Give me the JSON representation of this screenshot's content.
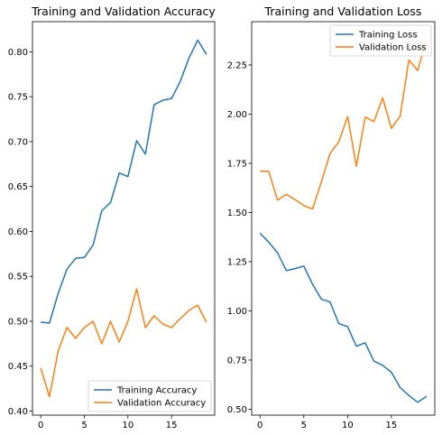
{
  "chart_data": [
    {
      "type": "line",
      "title": "Training and Validation Accuracy",
      "xlabel": "",
      "ylabel": "",
      "xlim": [
        -0.95,
        19.95
      ],
      "ylim": [
        0.3955,
        0.8335
      ],
      "xticks": [
        0,
        5,
        10,
        15
      ],
      "yticks": [
        0.4,
        0.45,
        0.5,
        0.55,
        0.6,
        0.65,
        0.7,
        0.75,
        0.8
      ],
      "ytick_labels": [
        "0.40",
        "0.45",
        "0.50",
        "0.55",
        "0.60",
        "0.65",
        "0.70",
        "0.75",
        "0.80"
      ],
      "grid": false,
      "legend_placement": "lower-right",
      "x": [
        0,
        1,
        2,
        3,
        4,
        5,
        6,
        7,
        8,
        9,
        10,
        11,
        12,
        13,
        14,
        15,
        16,
        17,
        18,
        19
      ],
      "series": [
        {
          "name": "Training Accuracy",
          "color": "#1f77b4",
          "values": [
            0.499,
            0.498,
            0.531,
            0.558,
            0.57,
            0.571,
            0.585,
            0.623,
            0.632,
            0.665,
            0.661,
            0.701,
            0.686,
            0.741,
            0.746,
            0.748,
            0.767,
            0.793,
            0.813,
            0.797
          ]
        },
        {
          "name": "Validation Accuracy",
          "color": "#ff7f0e",
          "values": [
            0.448,
            0.416,
            0.467,
            0.493,
            0.481,
            0.493,
            0.5,
            0.475,
            0.5,
            0.477,
            0.5,
            0.536,
            0.493,
            0.506,
            0.497,
            0.493,
            0.503,
            0.512,
            0.518,
            0.499
          ]
        }
      ]
    },
    {
      "type": "line",
      "title": "Training and Validation Loss",
      "xlabel": "",
      "ylabel": "",
      "xlim": [
        -0.95,
        19.95
      ],
      "ylim": [
        0.47,
        2.47
      ],
      "xticks": [
        0,
        5,
        10,
        15
      ],
      "yticks": [
        0.5,
        0.75,
        1.0,
        1.25,
        1.5,
        1.75,
        2.0,
        2.25
      ],
      "ytick_labels": [
        "0.50",
        "0.75",
        "1.00",
        "1.25",
        "1.50",
        "1.75",
        "2.00",
        "2.25"
      ],
      "grid": false,
      "legend_placement": "top-right",
      "x": [
        0,
        1,
        2,
        3,
        4,
        5,
        6,
        7,
        8,
        9,
        10,
        11,
        12,
        13,
        14,
        15,
        16,
        17,
        18,
        19
      ],
      "series": [
        {
          "name": "Training Loss",
          "color": "#1f77b4",
          "values": [
            1.395,
            1.35,
            1.295,
            1.205,
            1.215,
            1.228,
            1.135,
            1.06,
            1.045,
            0.935,
            0.92,
            0.82,
            0.838,
            0.745,
            0.723,
            0.688,
            0.61,
            0.57,
            0.535,
            0.566
          ]
        },
        {
          "name": "Validation Loss",
          "color": "#ff7f0e",
          "values": [
            1.71,
            1.71,
            1.563,
            1.593,
            1.565,
            1.535,
            1.518,
            1.655,
            1.8,
            1.86,
            1.988,
            1.735,
            1.985,
            1.962,
            2.083,
            1.928,
            1.99,
            2.275,
            2.222,
            2.38
          ]
        }
      ]
    }
  ]
}
